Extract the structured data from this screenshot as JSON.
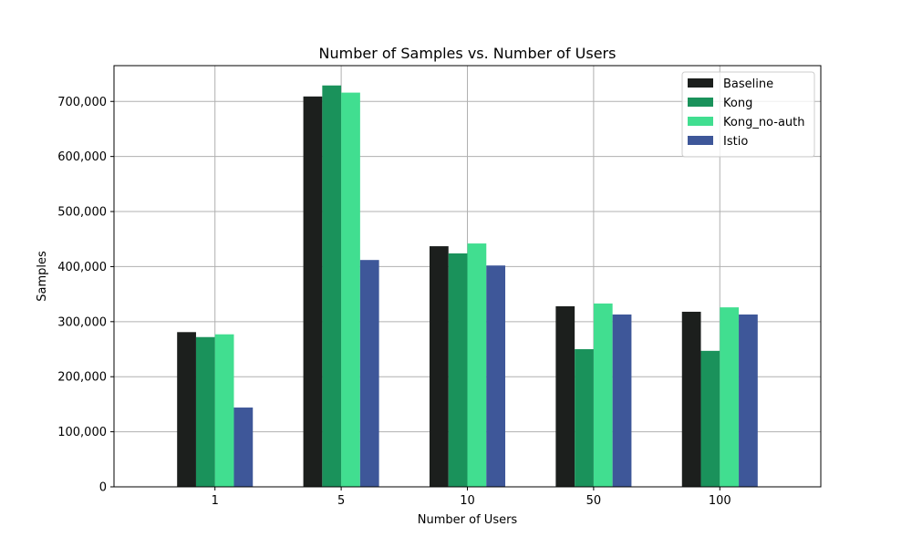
{
  "chart_data": {
    "type": "bar",
    "title": "Number of Samples vs. Number of Users",
    "xlabel": "Number of Users",
    "ylabel": "Samples",
    "categories": [
      "1",
      "5",
      "10",
      "50",
      "100"
    ],
    "ylim": [
      0,
      765000
    ],
    "yticks": [
      0,
      100000,
      200000,
      300000,
      400000,
      500000,
      600000,
      700000
    ],
    "ytick_labels": [
      "0",
      "100,000",
      "200,000",
      "300,000",
      "400,000",
      "500,000",
      "600,000",
      "700,000"
    ],
    "grid": true,
    "legend_position": "top-right",
    "series": [
      {
        "name": "Baseline",
        "color": "#1c1f1d",
        "values": [
          281000,
          709000,
          437000,
          328000,
          318000
        ]
      },
      {
        "name": "Kong",
        "color": "#1a925b",
        "values": [
          272000,
          729000,
          424000,
          250000,
          247000
        ]
      },
      {
        "name": "Kong_no-auth",
        "color": "#41de90",
        "values": [
          277000,
          716000,
          442000,
          333000,
          326000
        ]
      },
      {
        "name": "Istio",
        "color": "#3e5799",
        "values": [
          144000,
          412000,
          402000,
          313000,
          313000
        ]
      }
    ]
  }
}
